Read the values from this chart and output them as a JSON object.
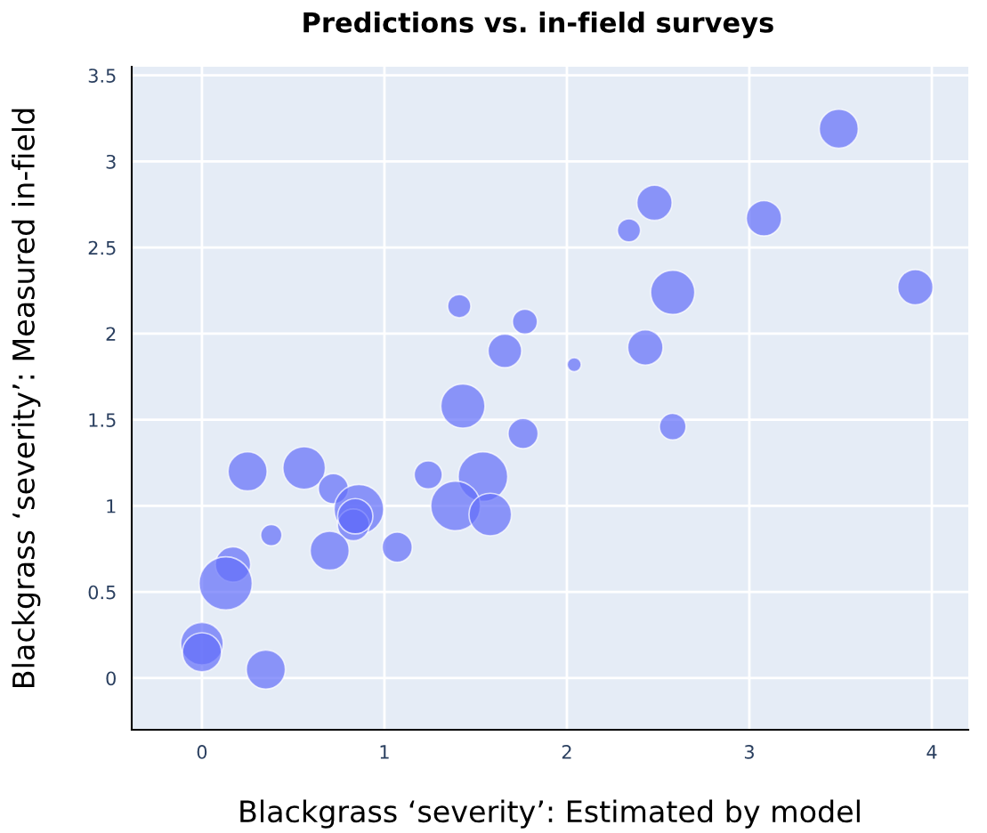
{
  "chart_data": {
    "type": "bubble",
    "title": "Predictions vs. in-field surveys",
    "xlabel": "Blackgrass ‘severity’: Estimated by model",
    "ylabel": "Blackgrass ‘severity’: Measured in-field",
    "x": [
      3.49,
      2.48,
      2.34,
      3.08,
      3.91,
      2.58,
      1.41,
      1.77,
      1.66,
      2.04,
      2.43,
      1.43,
      2.58,
      1.76,
      0.25,
      0.56,
      0.72,
      1.24,
      1.54,
      1.39,
      1.58,
      0.86,
      0.83,
      0.84,
      0.38,
      0.7,
      1.07,
      0.17,
      0.13,
      0.0,
      0.0,
      0.35
    ],
    "values": [
      3.19,
      2.76,
      2.6,
      2.67,
      2.27,
      2.24,
      2.16,
      2.07,
      1.9,
      1.82,
      1.92,
      1.58,
      1.46,
      1.42,
      1.2,
      1.22,
      1.1,
      1.18,
      1.17,
      1.0,
      0.95,
      0.98,
      0.89,
      0.94,
      0.83,
      0.74,
      0.76,
      0.66,
      0.55,
      0.2,
      0.15,
      0.05
    ],
    "sizes": [
      0.54,
      0.44,
      0.19,
      0.44,
      0.44,
      0.69,
      0.19,
      0.22,
      0.4,
      0.07,
      0.44,
      0.69,
      0.25,
      0.32,
      0.54,
      0.64,
      0.32,
      0.28,
      0.87,
      0.87,
      0.64,
      0.87,
      0.36,
      0.44,
      0.16,
      0.54,
      0.32,
      0.44,
      1,
      0.64,
      0.54,
      0.54
    ],
    "color": "#636efa",
    "xlim": [
      -0.385,
      4.2
    ],
    "ylim": [
      -0.3,
      3.55
    ],
    "xticks": [
      0,
      1,
      2,
      3,
      4
    ],
    "yticks": [
      0,
      0.5,
      1,
      1.5,
      2,
      2.5,
      3,
      3.5
    ],
    "grid": true
  }
}
